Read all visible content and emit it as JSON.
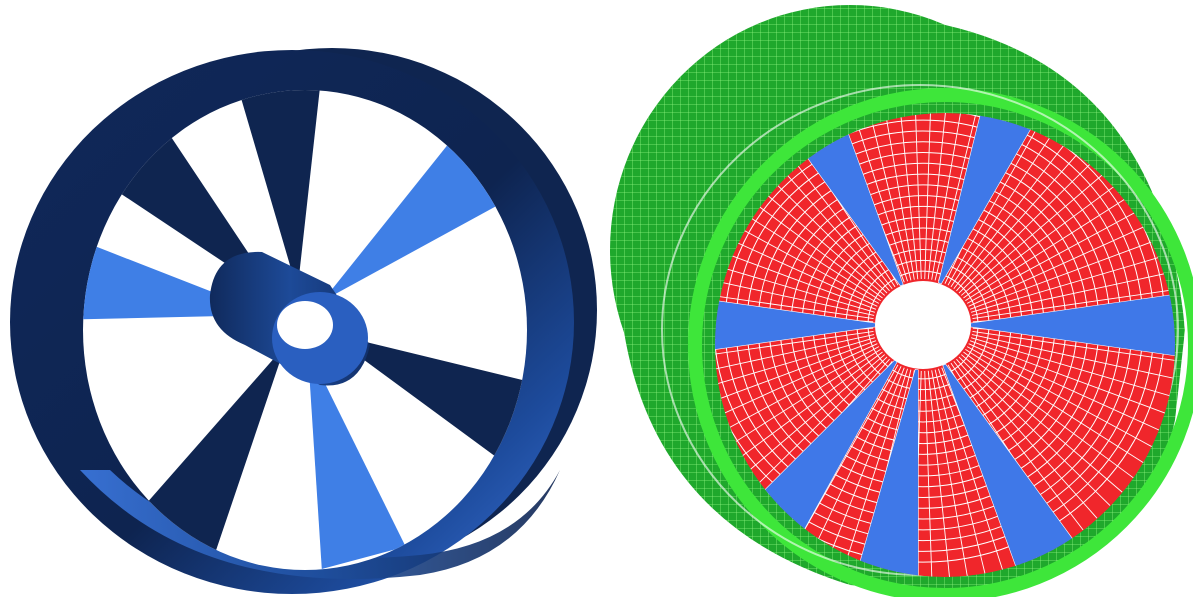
{
  "figure": {
    "panels": [
      {
        "name": "solid-model",
        "description_shown": false
      },
      {
        "name": "mesh-model",
        "description_shown": false
      }
    ]
  },
  "colors": {
    "background": "#ffffff",
    "solid_dark": "#0f2550",
    "solid_mid": "#1e4a9a",
    "solid_light": "#3f7fe6",
    "mesh_green": "#1fb02a",
    "mesh_green_light": "#3ee63a",
    "mesh_red": "#f0262b",
    "mesh_blue": "#3f78e8",
    "mesh_line": "#ffffff"
  },
  "model": {
    "blade_count": 7,
    "solid_blade_angles_deg": [
      -95,
      -40,
      25,
      75,
      120,
      190,
      225
    ],
    "mesh_blade_angles_deg": [
      -118,
      -68,
      0,
      62,
      98,
      127,
      180
    ]
  }
}
